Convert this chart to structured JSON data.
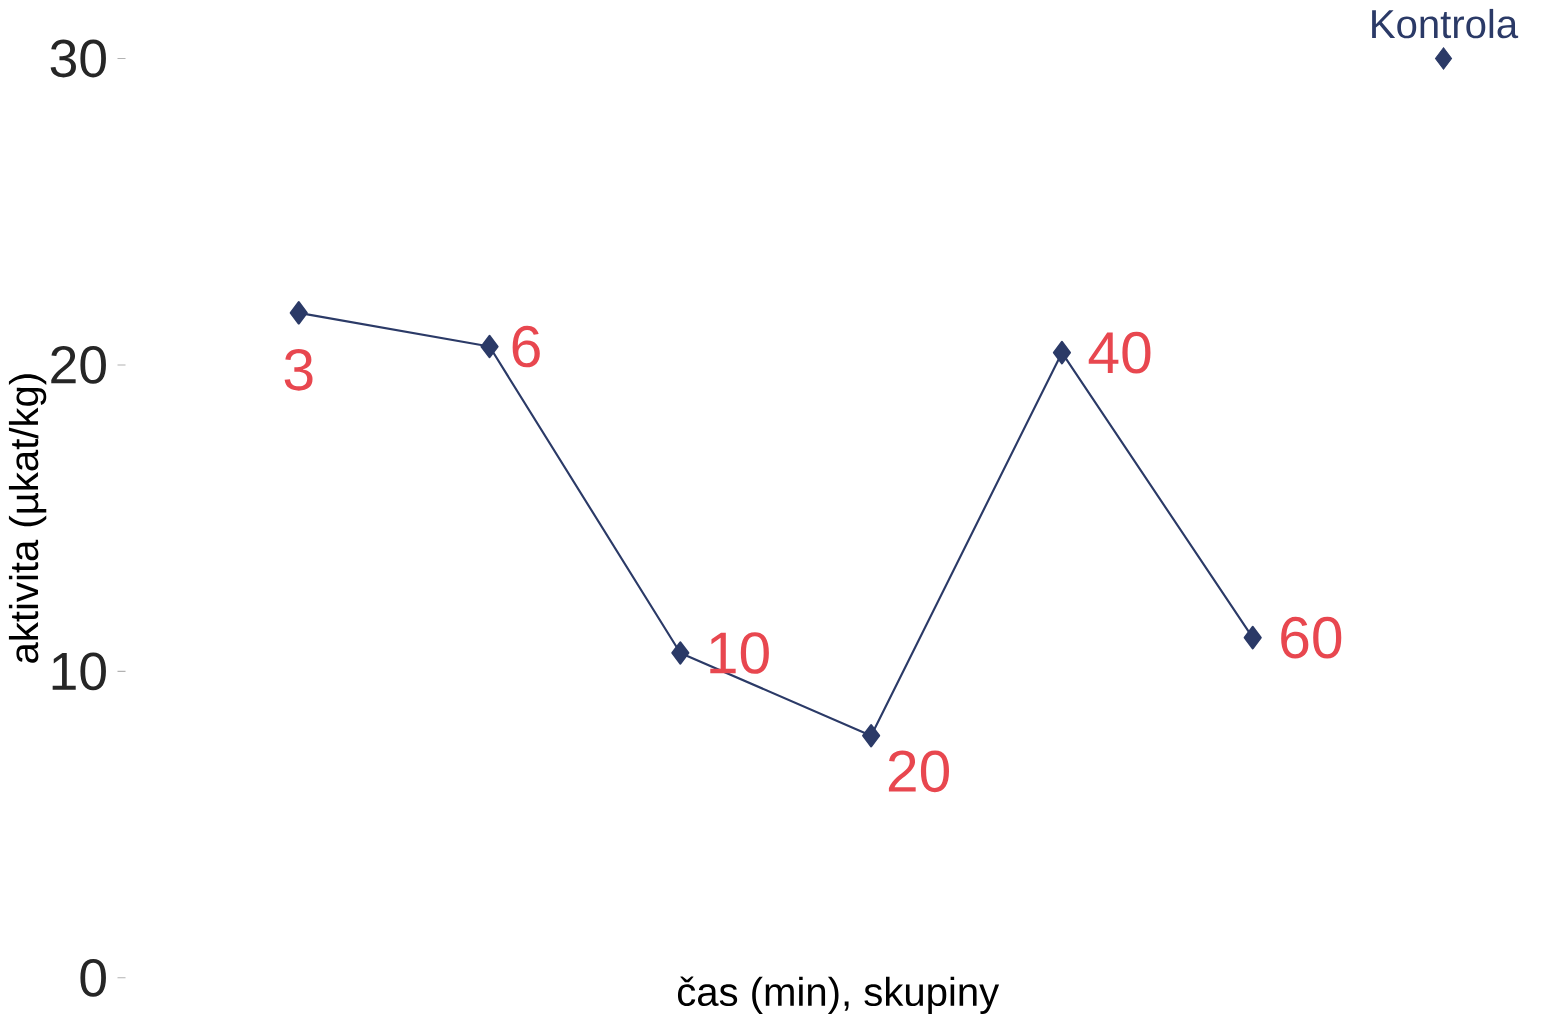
{
  "chart_data": {
    "type": "line",
    "xlabel": "čas (min), skupiny",
    "ylabel": "aktivita (µkat/kg)",
    "categories": [
      "3",
      "6",
      "10",
      "20",
      "40",
      "60",
      "Kontrola"
    ],
    "series": [
      {
        "color": "#2b3a67",
        "values": [
          21.7,
          20.6,
          10.6,
          7.9,
          20.4,
          11.1,
          null
        ]
      },
      {
        "type": "scatter",
        "color": "#2b3a67",
        "values": [
          null,
          null,
          null,
          null,
          null,
          null,
          30
        ]
      }
    ],
    "ylim": [
      0,
      30
    ],
    "yticks": [
      0,
      10,
      20,
      30
    ],
    "marker": "diamond",
    "tick_labels": "y"
  }
}
